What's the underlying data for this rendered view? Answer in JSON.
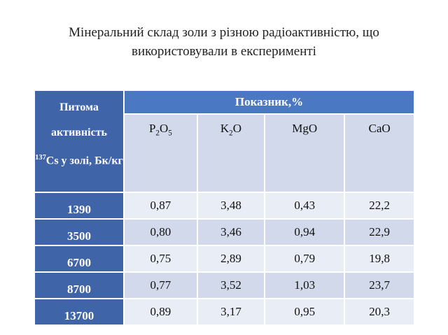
{
  "title": {
    "lines": [
      "Мінеральний склад золи з різною радіоактивністю, що",
      "використовували в експерименті"
    ]
  },
  "table": {
    "row_header": {
      "before": "Питома активність",
      "isotope_mass": "137",
      "after": "Cs у золі, Бк/кг"
    },
    "group_header": "Показник,%",
    "columns": [
      "P2O5",
      "K2O",
      "MgO",
      "CaO"
    ],
    "rows": [
      {
        "activity": "1390",
        "values": [
          "0,87",
          "3,48",
          "0,43",
          "22,2"
        ]
      },
      {
        "activity": "3500",
        "values": [
          "0,80",
          "3,46",
          "0,94",
          "22,9"
        ]
      },
      {
        "activity": "6700",
        "values": [
          "0,75",
          "2,89",
          "0,79",
          "19,8"
        ]
      },
      {
        "activity": "8700",
        "values": [
          "0,77",
          "3,52",
          "1,03",
          "23,7"
        ]
      },
      {
        "activity": "13700",
        "values": [
          "0,89",
          "3,17",
          "0,95",
          "20,3"
        ]
      }
    ]
  }
}
